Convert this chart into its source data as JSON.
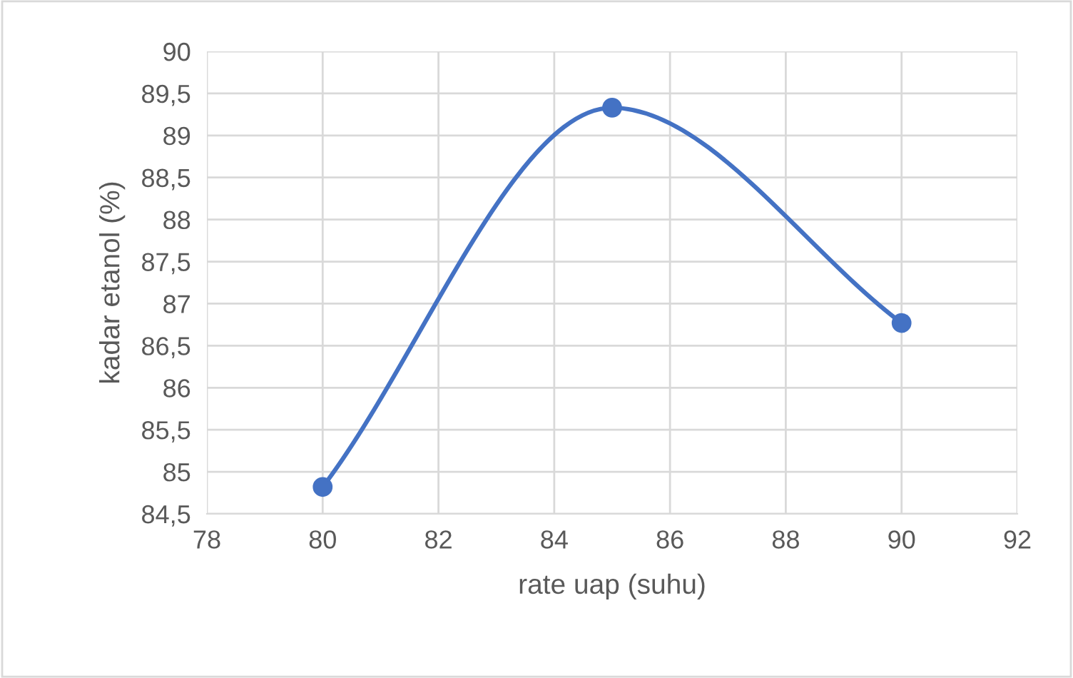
{
  "chart_data": {
    "type": "line",
    "xlabel": "rate uap (suhu)",
    "ylabel": "kadar etanol (%)",
    "x": [
      80,
      85,
      90
    ],
    "series": [
      {
        "color": "#4472c4",
        "values": [
          84.82,
          89.33,
          86.77
        ]
      }
    ],
    "marker": "circle",
    "line_style": "solid",
    "xlim": [
      78,
      92
    ],
    "xticks": [
      78,
      80,
      82,
      84,
      86,
      88,
      90,
      92
    ],
    "ylim": [
      84.5,
      90
    ],
    "yticks": [
      {
        "value": 84.5,
        "label": "84,5"
      },
      85,
      {
        "value": 85.5,
        "label": "85,5"
      },
      86,
      {
        "value": 86.5,
        "label": "86,5"
      },
      87,
      {
        "value": 87.5,
        "label": "87,5"
      },
      88,
      {
        "value": 88.5,
        "label": "88,5"
      },
      89,
      {
        "value": 89.5,
        "label": "89,5"
      },
      90
    ],
    "grid": true,
    "legend": false
  }
}
